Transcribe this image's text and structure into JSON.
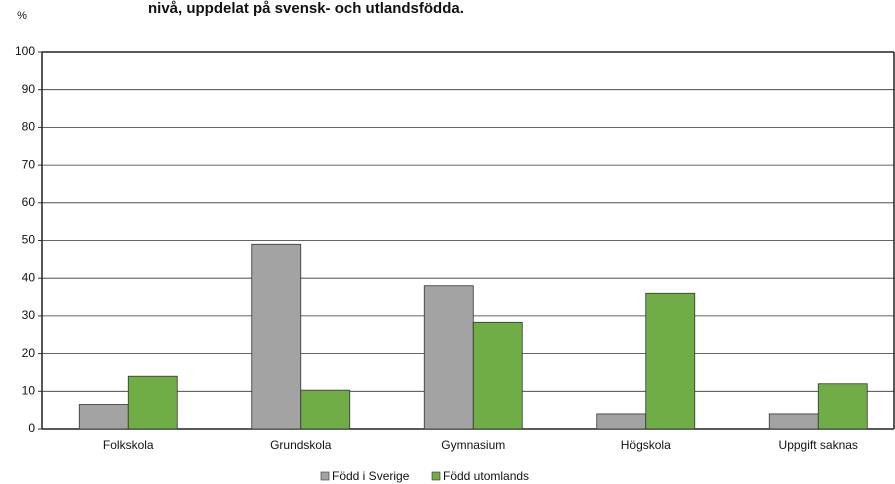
{
  "chart_data": {
    "type": "bar",
    "title": "nivå, uppdelat på svensk- och utlandsfödda.",
    "y_label": "%",
    "categories": [
      "Folkskola",
      "Grundskola",
      "Gymnasium",
      "Högskola",
      "Uppgift saknas"
    ],
    "series": [
      {
        "name": "Född i Sverige",
        "color": "#a3a3a3",
        "values": [
          6.5,
          49,
          38,
          4,
          4
        ]
      },
      {
        "name": "Född utomlands",
        "color": "#70ad47",
        "values": [
          14,
          10.3,
          28.3,
          36,
          12
        ]
      }
    ],
    "ylim": [
      0,
      100
    ],
    "yticks": [
      0,
      10,
      20,
      30,
      40,
      50,
      60,
      70,
      80,
      90,
      100
    ],
    "grid": true,
    "legend": "bottom"
  }
}
